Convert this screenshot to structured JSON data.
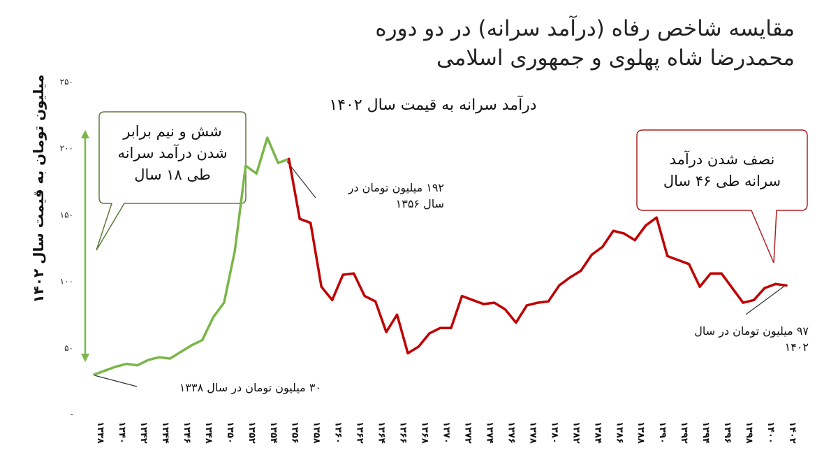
{
  "chart_data": {
    "type": "line",
    "title": "مقایسه شاخص رفاه (درآمد سرانه) در دو دوره محمدرضا شاه پهلوی و جمهوری اسلامی",
    "title_lines": [
      "مقایسه شاخص رفاه (درآمد سرانه) در دو دوره",
      "محمدرضا شاه پهلوی و جمهوری اسلامی"
    ],
    "subtitle": "درآمد سرانه به قیمت سال ۱۴۰۲",
    "ylabel": "میلیون تومان به قیمت سال ۱۴۰۲",
    "xlabel": "",
    "ylim": [
      0,
      250
    ],
    "yticks": [
      0,
      50,
      100,
      150,
      200,
      250
    ],
    "ytick_labels": [
      "-",
      "۵۰",
      "۱۰۰",
      "۱۵۰",
      "۲۰۰",
      "۲۵۰"
    ],
    "x": [
      1338,
      1339,
      1340,
      1341,
      1342,
      1343,
      1344,
      1345,
      1346,
      1347,
      1348,
      1349,
      1350,
      1351,
      1352,
      1353,
      1354,
      1355,
      1356,
      1357,
      1358,
      1359,
      1360,
      1361,
      1362,
      1363,
      1364,
      1365,
      1366,
      1367,
      1368,
      1369,
      1370,
      1371,
      1372,
      1373,
      1374,
      1375,
      1376,
      1377,
      1378,
      1379,
      1380,
      1381,
      1382,
      1383,
      1384,
      1385,
      1386,
      1387,
      1388,
      1389,
      1390,
      1391,
      1392,
      1393,
      1394,
      1395,
      1396,
      1397,
      1398,
      1399,
      1400,
      1401,
      1402
    ],
    "xticks": [
      1338,
      1340,
      1342,
      1344,
      1346,
      1348,
      1350,
      1352,
      1354,
      1356,
      1358,
      1360,
      1362,
      1364,
      1366,
      1368,
      1370,
      1372,
      1374,
      1376,
      1378,
      1380,
      1382,
      1384,
      1386,
      1388,
      1390,
      1392,
      1394,
      1396,
      1398,
      1400,
      1402
    ],
    "xtick_labels": [
      "۱۳۳۸",
      "۱۳۴۰",
      "۱۳۴۲",
      "۱۳۴۴",
      "۱۳۴۶",
      "۱۳۴۸",
      "۱۳۵۰",
      "۱۳۵۲",
      "۱۳۵۴",
      "۱۳۵۶",
      "۱۳۵۸",
      "۱۳۶۰",
      "۱۳۶۲",
      "۱۳۶۴",
      "۱۳۶۶",
      "۱۳۶۸",
      "۱۳۷۰",
      "۱۳۷۲",
      "۱۳۷۴",
      "۱۳۷۶",
      "۱۳۷۸",
      "۱۳۸۰",
      "۱۳۸۲",
      "۱۳۸۴",
      "۱۳۸۶",
      "۱۳۸۸",
      "۱۳۹۰",
      "۱۳۹۲",
      "۱۳۹۴",
      "۱۳۹۶",
      "۱۳۹۸",
      "۱۴۰۰",
      "۱۴۰۲"
    ],
    "series": [
      {
        "color": "#7ab648",
        "x": [
          1338,
          1339,
          1340,
          1341,
          1342,
          1343,
          1344,
          1345,
          1346,
          1347,
          1348,
          1349,
          1350,
          1351,
          1352,
          1353,
          1354,
          1355,
          1356
        ],
        "values": [
          30,
          33,
          36,
          38,
          37,
          41,
          43,
          42,
          47,
          52,
          56,
          73,
          84,
          123,
          187,
          181,
          208,
          189,
          192
        ]
      },
      {
        "color": "#c00000",
        "x": [
          1356,
          1357,
          1358,
          1359,
          1360,
          1361,
          1362,
          1363,
          1364,
          1365,
          1366,
          1367,
          1368,
          1369,
          1370,
          1371,
          1372,
          1373,
          1374,
          1375,
          1376,
          1377,
          1378,
          1379,
          1380,
          1381,
          1382,
          1383,
          1384,
          1385,
          1386,
          1387,
          1388,
          1389,
          1390,
          1391,
          1392,
          1393,
          1394,
          1395,
          1396,
          1397,
          1398,
          1399,
          1400,
          1401,
          1402
        ],
        "values": [
          192,
          147,
          144,
          96,
          86,
          105,
          106,
          89,
          85,
          62,
          75,
          46,
          51,
          61,
          65,
          65,
          89,
          86,
          83,
          84,
          79,
          69,
          82,
          84,
          85,
          97,
          103,
          108,
          120,
          126,
          138,
          136,
          131,
          142,
          148,
          119,
          116,
          113,
          96,
          106,
          106,
          95,
          84,
          86,
          95,
          98,
          97
        ]
      }
    ]
  },
  "callouts": {
    "left": [
      "شش و نیم برابر",
      "شدن درآمد سرانه",
      "طی ۱۸ سال"
    ],
    "right": [
      "نصف شدن درآمد",
      "سرانه طی ۴۶ سال"
    ]
  },
  "notes": {
    "peak": [
      "۱۹۲ میلیون تومان در",
      "سال ۱۳۵۶"
    ],
    "start": "۳۰ میلیون تومان در سال ۱۳۳۸",
    "end": [
      "۹۷ میلیون تومان در سال",
      "۱۴۰۲"
    ]
  },
  "colors": {
    "growth": "#7ab648",
    "decline": "#c00000",
    "left_box_border": "#5a7a3a",
    "right_box_border": "#b02020"
  }
}
